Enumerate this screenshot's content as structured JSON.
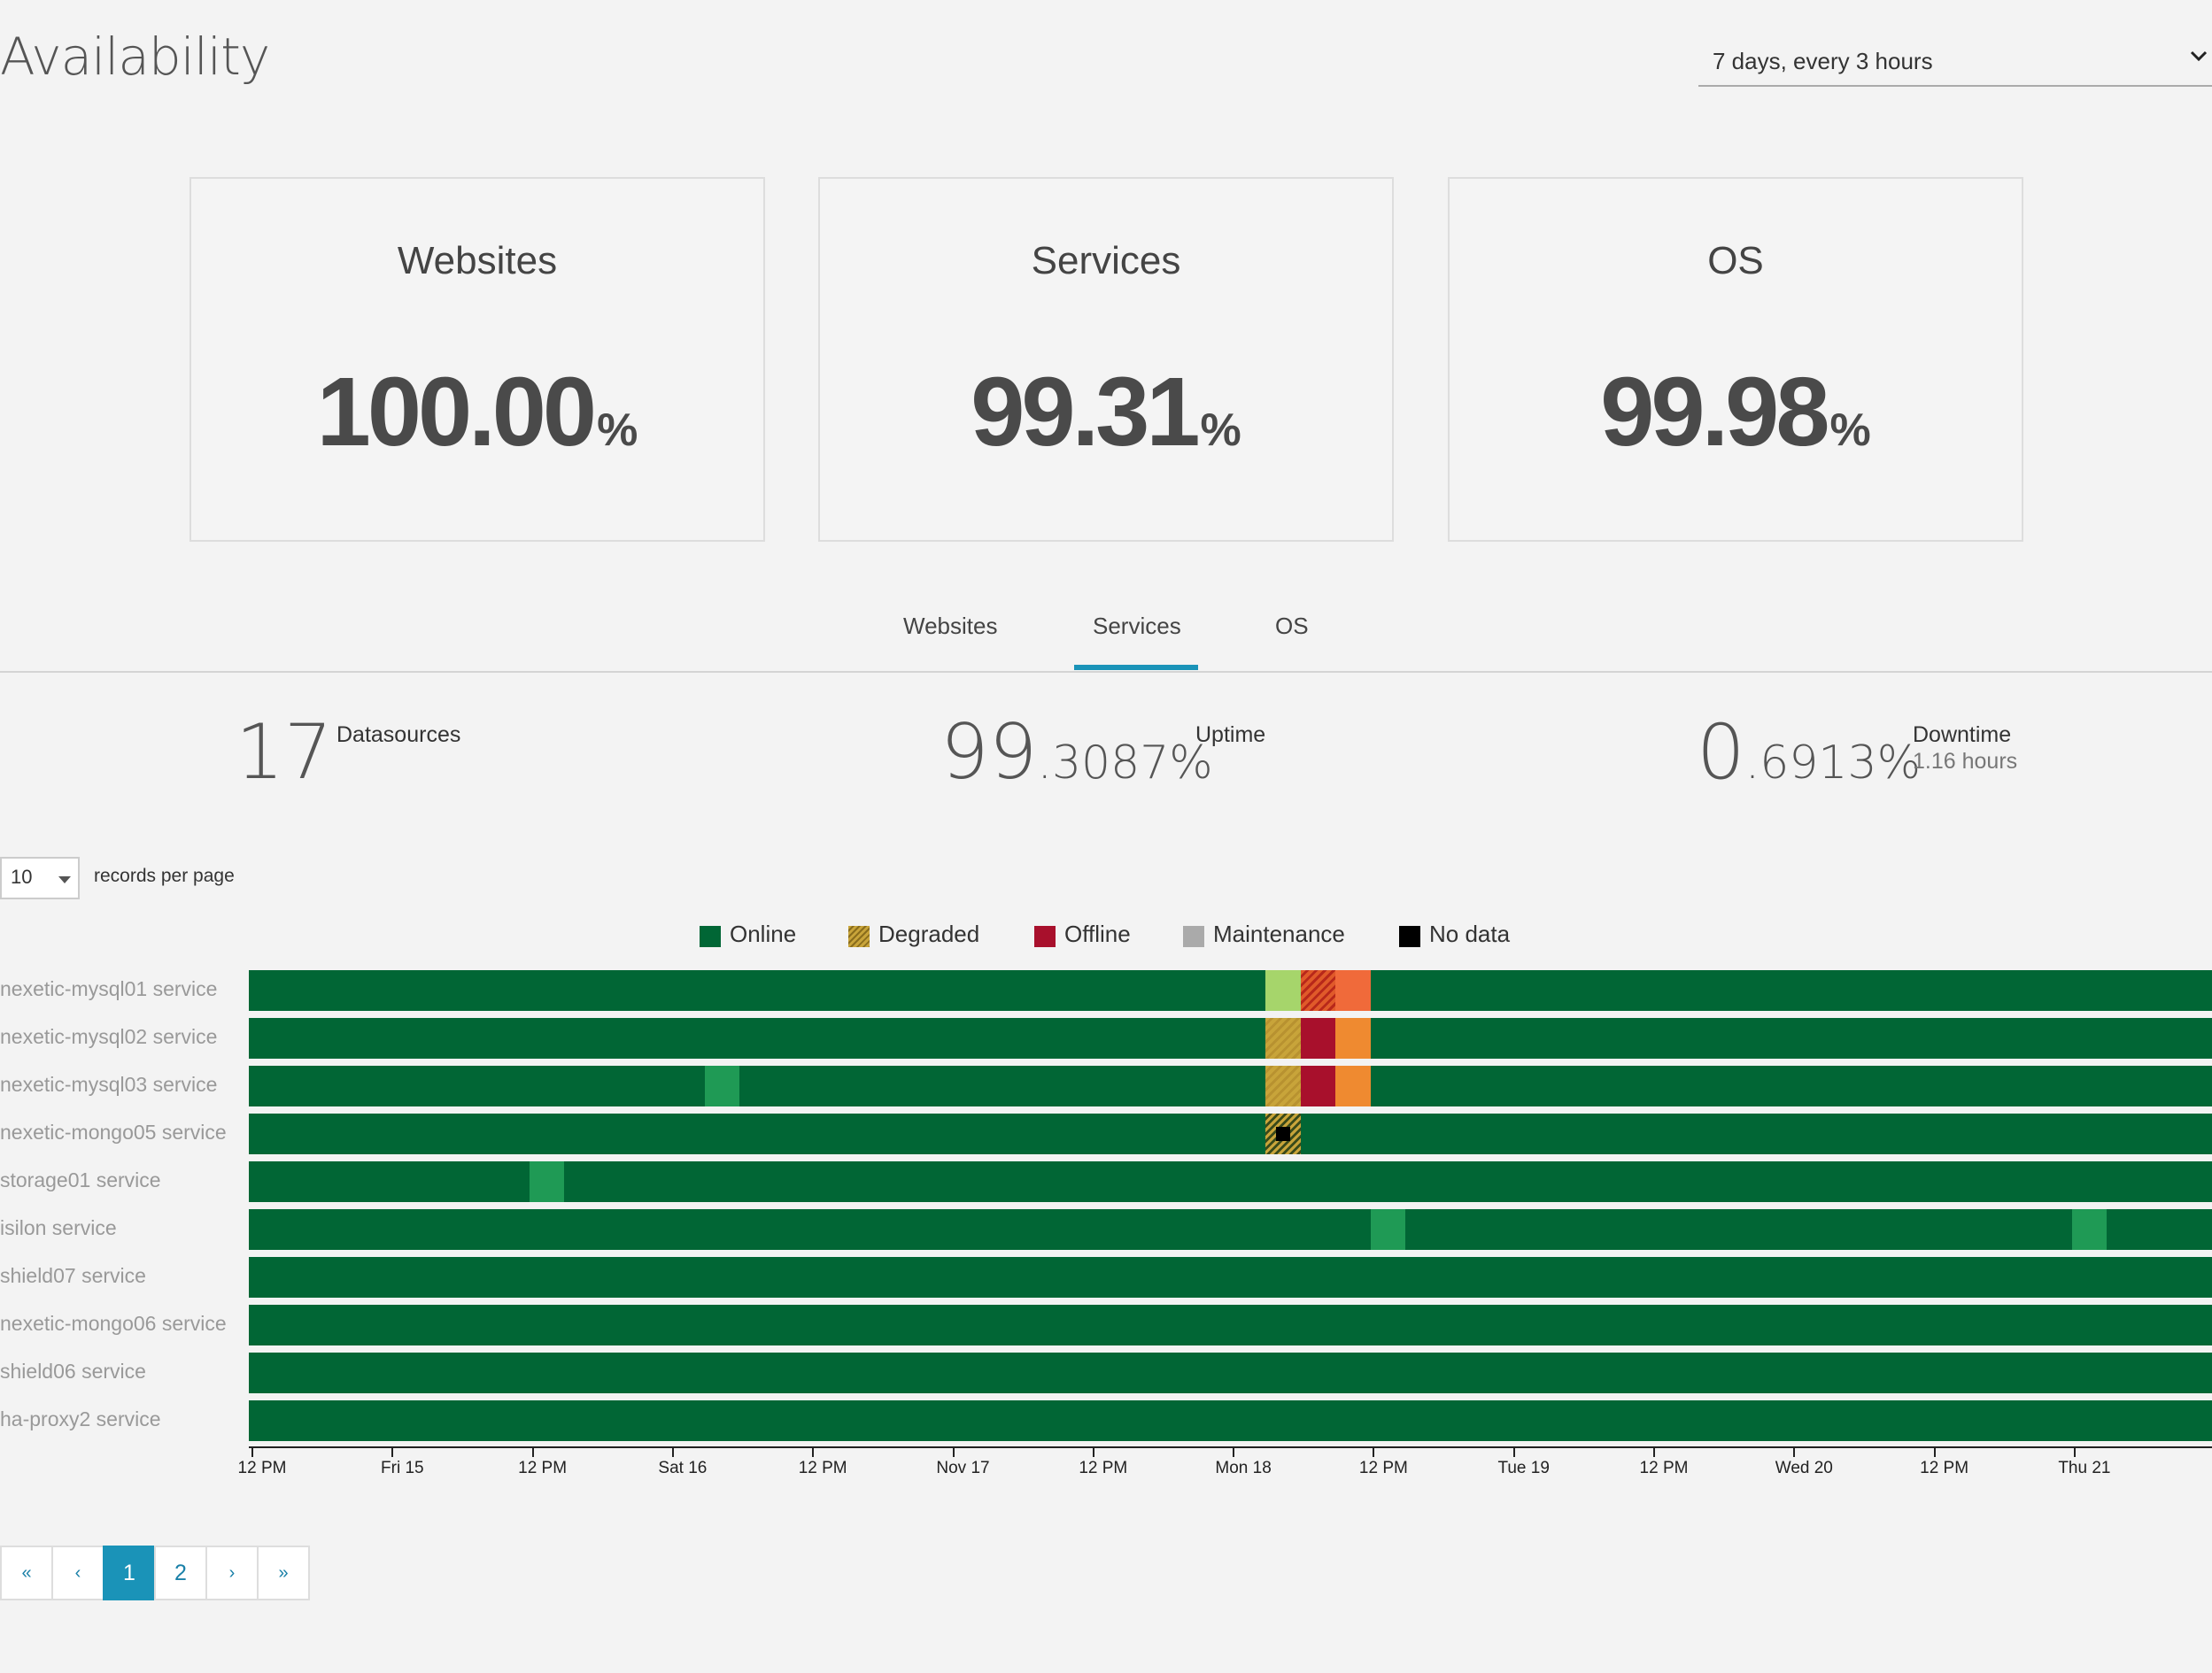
{
  "header": {
    "title": "Availability",
    "range_select": {
      "value": "7 days, every 3 hours",
      "icon": "chevron-down-icon"
    }
  },
  "summary_cards": [
    {
      "title": "Websites",
      "value": "100.00",
      "unit": "%"
    },
    {
      "title": "Services",
      "value": "99.31",
      "unit": "%"
    },
    {
      "title": "OS",
      "value": "99.98",
      "unit": "%"
    }
  ],
  "tabs": [
    {
      "label": "Websites",
      "active": false
    },
    {
      "label": "Services",
      "active": true
    },
    {
      "label": "OS",
      "active": false
    }
  ],
  "metrics": {
    "datasources": {
      "value": "17",
      "label": "Datasources"
    },
    "uptime": {
      "int": "99",
      "frac": ".3087%",
      "label": "Uptime"
    },
    "downtime": {
      "int": "0",
      "frac": ".6913%",
      "label": "Downtime",
      "sub": "1.16 hours"
    }
  },
  "pagination_size": {
    "value": "10",
    "label": "records per page"
  },
  "colors": {
    "online": "#016635",
    "online_light": "#1f9a55",
    "degraded": "#c8a43a",
    "offline": "#a8102c",
    "maintenance": "#aaaaaa",
    "nodata": "#000000",
    "orange": "#ef8a30",
    "light_green": "#a6d56b",
    "accent": "#1a93b8"
  },
  "legend": [
    {
      "label": "Online",
      "color": "#016635"
    },
    {
      "label": "Degraded",
      "color": "#c8a43a"
    },
    {
      "label": "Offline",
      "color": "#a8102c"
    },
    {
      "label": "Maintenance",
      "color": "#aaaaaa"
    },
    {
      "label": "No data",
      "color": "#000000"
    }
  ],
  "chart_data": {
    "type": "heatmap",
    "x_interval_hours": 3,
    "slots": 56,
    "tick_labels": [
      "12 PM",
      "Fri 15",
      "12 PM",
      "Sat 16",
      "12 PM",
      "Nov 17",
      "12 PM",
      "Mon 18",
      "12 PM",
      "Tue 19",
      "12 PM",
      "Wed 20",
      "12 PM",
      "Thu 21"
    ],
    "rows": [
      {
        "name": "nexetic-mysql01 service",
        "events": [
          {
            "slot": 29,
            "status": "online-partial"
          },
          {
            "slot": 30,
            "status": "offline-partial"
          },
          {
            "slot": 31,
            "status": "offline-partial"
          }
        ]
      },
      {
        "name": "nexetic-mysql02 service",
        "events": [
          {
            "slot": 29,
            "status": "degraded"
          },
          {
            "slot": 30,
            "status": "offline"
          },
          {
            "slot": 31,
            "status": "offline-partial"
          }
        ]
      },
      {
        "name": "nexetic-mysql03 service",
        "events": [
          {
            "slot": 13,
            "status": "online-partial"
          },
          {
            "slot": 29,
            "status": "degraded"
          },
          {
            "slot": 30,
            "status": "offline"
          },
          {
            "slot": 31,
            "status": "offline-partial"
          }
        ]
      },
      {
        "name": "nexetic-mongo05 service",
        "events": [
          {
            "slot": 29,
            "status": "degraded-nodata"
          }
        ]
      },
      {
        "name": "storage01 service",
        "events": [
          {
            "slot": 8,
            "status": "online-partial"
          }
        ]
      },
      {
        "name": "isilon service",
        "events": [
          {
            "slot": 32,
            "status": "online-partial"
          },
          {
            "slot": 52,
            "status": "online-partial"
          }
        ]
      },
      {
        "name": "shield07 service",
        "events": []
      },
      {
        "name": "nexetic-mongo06 service",
        "events": []
      },
      {
        "name": "shield06 service",
        "events": []
      },
      {
        "name": "ha-proxy2 service",
        "events": []
      }
    ]
  },
  "pager": {
    "first": "«",
    "prev": "‹",
    "pages": [
      "1",
      "2"
    ],
    "active_page": "1",
    "next": "›",
    "last": "»"
  }
}
